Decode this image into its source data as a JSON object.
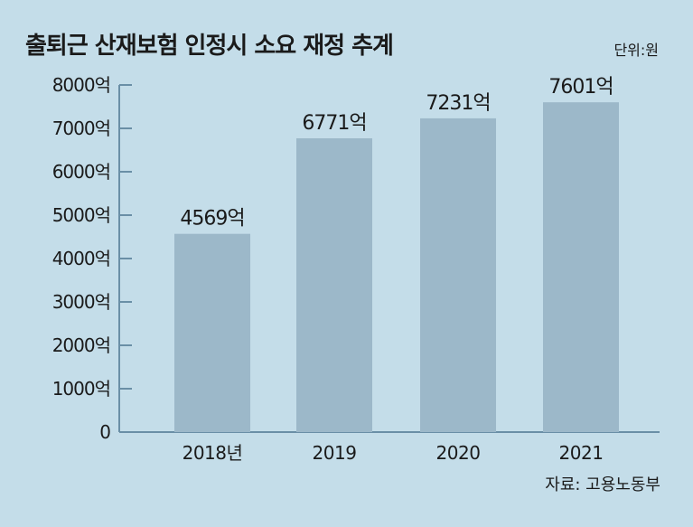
{
  "title": "출퇴근 산재보험 인정시 소요 재정 추계",
  "unit_note": "단위:원",
  "source_note": "자료: 고용노동부",
  "colors": {
    "background": "#c4dde9",
    "bar": "#9cb8c9",
    "axis": "#6a8fa6"
  },
  "chart_data": {
    "type": "bar",
    "title": "출퇴근 산재보험 인정시 소요 재정 추계",
    "categories": [
      "2018년",
      "2019",
      "2020",
      "2021"
    ],
    "values": [
      4569,
      6771,
      7231,
      7601
    ],
    "data_labels": [
      "4569억",
      "6771억",
      "7231억",
      "7601억"
    ],
    "yticks": [
      0,
      1000,
      2000,
      3000,
      4000,
      5000,
      6000,
      7000,
      8000
    ],
    "ytick_labels": [
      "0",
      "1000억",
      "2000억",
      "3000억",
      "4000억",
      "5000억",
      "6000억",
      "7000억",
      "8000억"
    ],
    "ylim": [
      0,
      8000
    ],
    "grid": false,
    "legend": "none"
  }
}
